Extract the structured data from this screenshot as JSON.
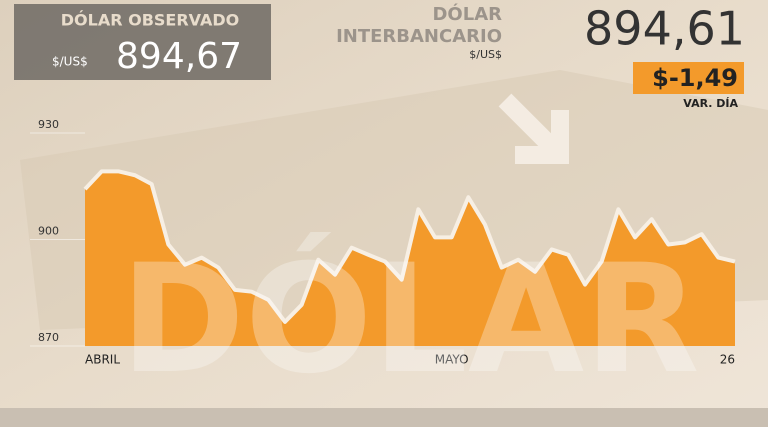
{
  "indicators": {
    "observed": {
      "title": "DÓLAR OBSERVADO",
      "unit": "$/US$",
      "value": "894,67"
    },
    "interbank": {
      "title": [
        "DÓLAR",
        "INTERBANCARIO"
      ],
      "unit": "$/US$",
      "value": "894,61",
      "change": "$-1,49",
      "change_label": "VAR. DÍA"
    }
  },
  "watermark": "DÓLAR",
  "chart_data": {
    "type": "area",
    "color": "#f39a2b",
    "line_color": "#f7efe4",
    "categories": [
      "ABRIL",
      null,
      null,
      null,
      null,
      null,
      null,
      null,
      null,
      null,
      null,
      null,
      null,
      null,
      null,
      null,
      null,
      null,
      null,
      null,
      null,
      null,
      "MAYO",
      null,
      null,
      null,
      null,
      null,
      null,
      null,
      null,
      null,
      null,
      null,
      null,
      null,
      null,
      null,
      null,
      "26"
    ],
    "values": [
      914.2,
      919.2,
      919.2,
      918.1,
      915.6,
      898.6,
      892.9,
      894.9,
      892.1,
      885.8,
      885.3,
      883.0,
      876.8,
      881.6,
      894.3,
      890.1,
      897.7,
      895.7,
      893.8,
      888.7,
      908.5,
      900.6,
      900.6,
      911.9,
      904.2,
      892.1,
      894.3,
      890.9,
      897.2,
      895.7,
      887.3,
      893.8,
      908.5,
      900.6,
      905.7,
      898.6,
      899.2,
      901.5,
      894.9,
      893.8
    ],
    "ylim": [
      870,
      930
    ],
    "yticks": [
      870,
      900,
      930
    ]
  }
}
